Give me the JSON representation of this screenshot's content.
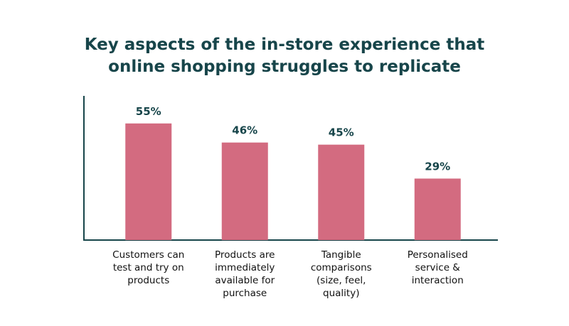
{
  "chart_data": {
    "type": "bar",
    "title": "Key aspects of the in-store experience that\nonline shopping struggles to replicate",
    "categories": [
      "Customers can\ntest and try on\nproducts",
      "Products are\nimmediately\navailable for\npurchase",
      "Tangible\ncomparisons\n(size, feel,\nquality)",
      "Personalised\nservice &\ninteraction"
    ],
    "values": [
      55,
      46,
      45,
      29
    ],
    "value_labels": [
      "55%",
      "46%",
      "45%",
      "29%"
    ],
    "color": "#d36b80",
    "ylim": [
      0,
      68
    ]
  }
}
